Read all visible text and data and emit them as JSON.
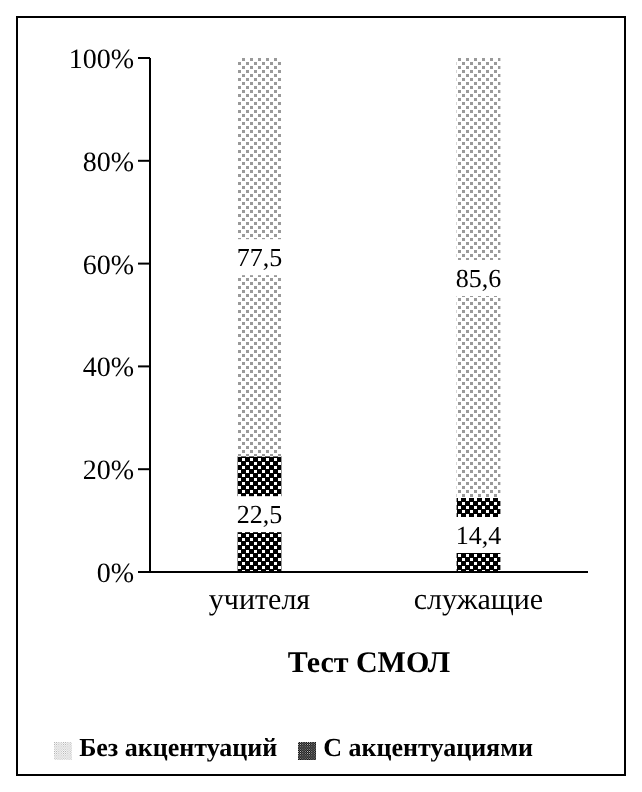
{
  "chart_data": {
    "type": "bar",
    "stacked": true,
    "xlabel": "Тест СМОЛ",
    "categories": [
      "учителя",
      "служащие"
    ],
    "series": [
      {
        "name": "С акцентуациями",
        "color": "#000000",
        "values": [
          22.5,
          14.4
        ],
        "value_labels": [
          "22,5",
          "14,4"
        ]
      },
      {
        "name": "Без акцентуаций",
        "color": "#9a9a9a",
        "values": [
          77.5,
          85.6
        ],
        "value_labels": [
          "77,5",
          "85,6"
        ]
      }
    ],
    "ylim": [
      0,
      100
    ],
    "yticks": [
      {
        "value": 0,
        "label": "0%"
      },
      {
        "value": 20,
        "label": "20%"
      },
      {
        "value": 40,
        "label": "40%"
      },
      {
        "value": 60,
        "label": "60%"
      },
      {
        "value": 80,
        "label": "80%"
      },
      {
        "value": 100,
        "label": "100%"
      }
    ],
    "grid": false,
    "legend": "bottom"
  }
}
